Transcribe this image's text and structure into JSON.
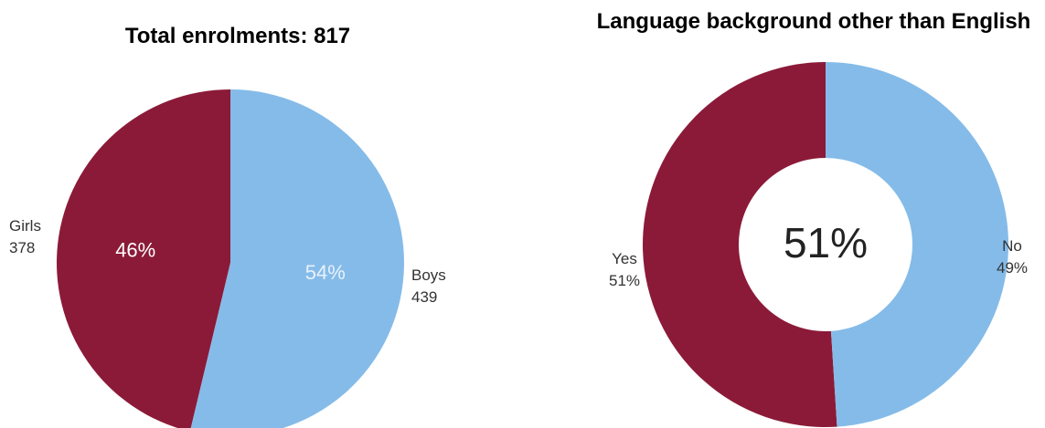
{
  "chart_data": [
    {
      "type": "pie",
      "title": "Total enrolments: 817",
      "slices": [
        {
          "label": "Girls",
          "count_text": "378",
          "value": 378,
          "percent_text": "46%",
          "color": "#8B1A38"
        },
        {
          "label": "Boys",
          "count_text": "439",
          "value": 439,
          "percent_text": "54%",
          "color": "#85BBE8"
        }
      ]
    },
    {
      "type": "donut",
      "title": "Language background other than English",
      "center_text": "51%",
      "slices": [
        {
          "label": "Yes",
          "percent_text": "51%",
          "value": 51,
          "color": "#8B1A38"
        },
        {
          "label": "No",
          "percent_text": "49%",
          "value": 49,
          "color": "#85BBE8"
        }
      ]
    }
  ]
}
